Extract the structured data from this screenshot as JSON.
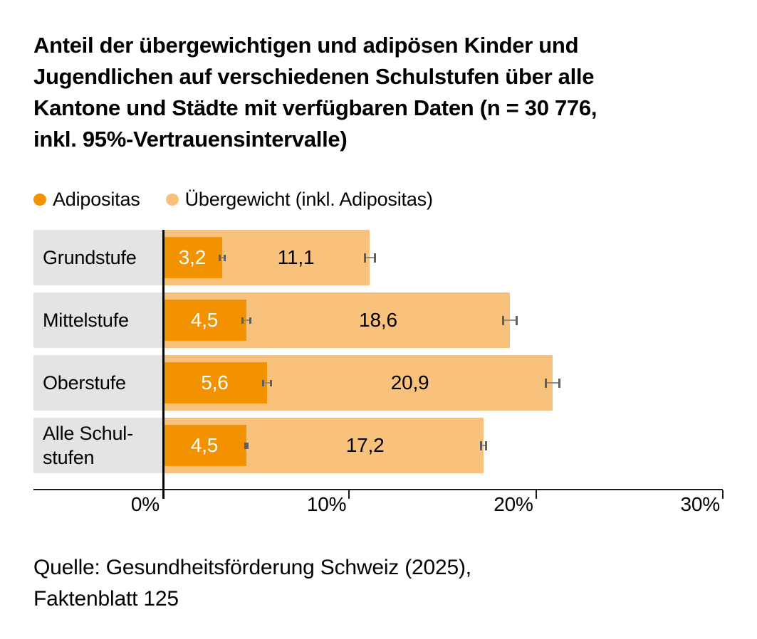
{
  "header": {
    "title_lines": [
      "Anteil der übergewichtigen und adipösen Kinder und",
      "Jugendlichen auf verschiedenen Schulstufen über alle",
      "Kantone und Städte mit verfügbaren Daten (n = 30 776,",
      "inkl. 95%-Vertrauensintervalle)"
    ]
  },
  "legend": [
    {
      "label": "Adipositas",
      "color": "#F39200",
      "icon": "circle-swatch-icon"
    },
    {
      "label": "Übergewicht (inkl. Adipositas)",
      "color": "#F8C27D",
      "icon": "circle-swatch-icon"
    }
  ],
  "chart_data": {
    "type": "bar",
    "orientation": "horizontal",
    "title": "Anteil der übergewichtigen und adipösen Kinder und Jugendlichen auf verschiedenen Schulstufen über alle Kantone und Städte mit verfügbaren Daten (n = 30 776, inkl. 95%-Vertrauensintervalle)",
    "categories": [
      "Grundstufe",
      "Mittelstufe",
      "Oberstufe",
      "Alle Schul-\nstufen"
    ],
    "series": [
      {
        "name": "Adipositas",
        "color": "#F39200",
        "values": [
          3.2,
          4.5,
          5.6,
          4.5
        ],
        "value_labels": [
          "3,2",
          "4,5",
          "5,6",
          "4,5"
        ],
        "ci_half": [
          0.2,
          0.25,
          0.28,
          0.12
        ],
        "label_color": "#ffffff"
      },
      {
        "name": "Übergewicht (inkl. Adipositas)",
        "color": "#F8C27D",
        "values": [
          11.1,
          18.6,
          20.9,
          17.2
        ],
        "value_labels": [
          "11,1",
          "18,6",
          "20,9",
          "17,2"
        ],
        "ci_half": [
          0.32,
          0.42,
          0.42,
          0.2
        ],
        "label_color": "#000000"
      }
    ],
    "xlabel": "",
    "ylabel": "",
    "xlim": [
      0,
      30
    ],
    "x_ticks": [
      0,
      10,
      20,
      30
    ],
    "x_tick_labels": [
      "0%",
      "10%",
      "20%",
      "30%"
    ],
    "grid": false,
    "error_bars": true,
    "legend_position": "top",
    "category_bg": "#E3E4E3",
    "axis_color": "#1a1a1a",
    "errorbar_color": "#6e6e6e"
  },
  "source": {
    "lines": [
      "Quelle: Gesundheitsförderung Schweiz (2025),",
      "Faktenblatt 125"
    ]
  }
}
